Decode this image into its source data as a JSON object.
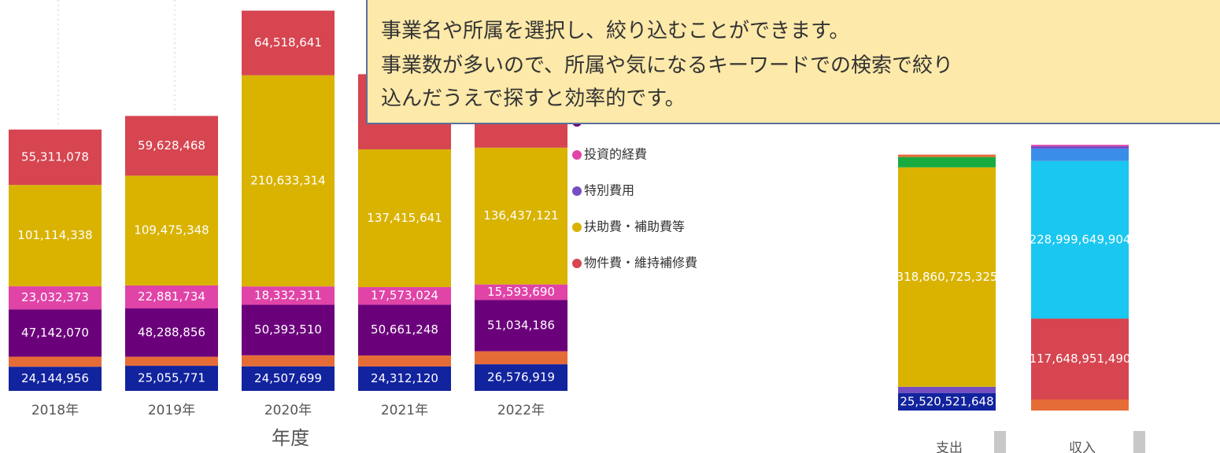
{
  "tooltip": {
    "lines": [
      "事業名や所属を選択し、絞り込むことができます。",
      "事業数が多いので、所属や気になるキーワードでの検索で絞り",
      "込んだうえで探すと効率的です。"
    ]
  },
  "chart_data": [
    {
      "type": "stacked-bar",
      "x_label": "年度",
      "categories": [
        "2018年",
        "2019年",
        "2020年",
        "2021年",
        "2022年"
      ],
      "ylim": [
        0,
        390000000
      ],
      "series": [
        {
          "color": "#12239e",
          "values": [
            24144956,
            25055771,
            24507699,
            24312120,
            26576919
          ],
          "value_labels": [
            "24,144,956",
            "25,055,771",
            "24,507,699",
            "24,312,120",
            "26,576,919"
          ]
        },
        {
          "color": "#e66c37",
          "values": [
            10000000,
            9000000,
            11000000,
            11000000,
            13000000
          ]
        },
        {
          "color": "#6b007b",
          "values": [
            47142070,
            48288856,
            50393510,
            50661248,
            51034186
          ],
          "value_labels": [
            "47,142,070",
            "48,288,856",
            "50,393,510",
            "50,661,248",
            "51,034,186"
          ]
        },
        {
          "color": "#e044a7",
          "values": [
            23032373,
            22881734,
            18332311,
            17573024,
            15593690
          ],
          "value_labels": [
            "23,032,373",
            "22,881,734",
            "18,332,311",
            "17,573,024",
            "15,593,690"
          ]
        },
        {
          "color": "#d9b300",
          "values": [
            101114338,
            109475348,
            210633314,
            137415641,
            136437121
          ],
          "value_labels": [
            "101,114,338",
            "109,475,348",
            "210,633,314",
            "137,415,641",
            "136,437,121"
          ]
        },
        {
          "color": "#d64550",
          "values": [
            55311078,
            59628468,
            64518641,
            75000000,
            72000000
          ],
          "value_labels": [
            "55,311,078",
            "59,628,468",
            "64,518,641",
            null,
            null
          ]
        }
      ],
      "legend": [
        {
          "name": "投資的経費",
          "color": "#e044a7"
        },
        {
          "name": "特別費用",
          "color": "#744ec2"
        },
        {
          "name": "扶助費・補助費等",
          "color": "#d9b300"
        },
        {
          "name": "物件費・維持補修費",
          "color": "#d64550"
        }
      ]
    },
    {
      "type": "stacked-bar",
      "ylim": [
        0,
        400000000000
      ],
      "bars": [
        {
          "category": "支出",
          "segments": [
            {
              "value": 25520521648,
              "color": "#12239e",
              "label": "25,520,521,648"
            },
            {
              "value": 9000000000,
              "color": "#744ec2"
            },
            {
              "value": 318860725325,
              "color": "#d9b300",
              "label": "318,860,725,325"
            },
            {
              "value": 15000000000,
              "color": "#1aab40"
            },
            {
              "value": 3500000000,
              "color": "#e66c37"
            }
          ]
        },
        {
          "category": "収入",
          "segments": [
            {
              "value": 16000000000,
              "color": "#e66c37"
            },
            {
              "value": 117648951490,
              "color": "#d64550",
              "label": "117,648,951,490"
            },
            {
              "value": 228999649904,
              "color": "#1ac7f0",
              "label": "228,999,649,904"
            },
            {
              "value": 18000000000,
              "color": "#3a8de8"
            },
            {
              "value": 3500000000,
              "color": "#744ec2"
            },
            {
              "value": 2000000000,
              "color": "#e044a7"
            }
          ]
        }
      ]
    }
  ]
}
